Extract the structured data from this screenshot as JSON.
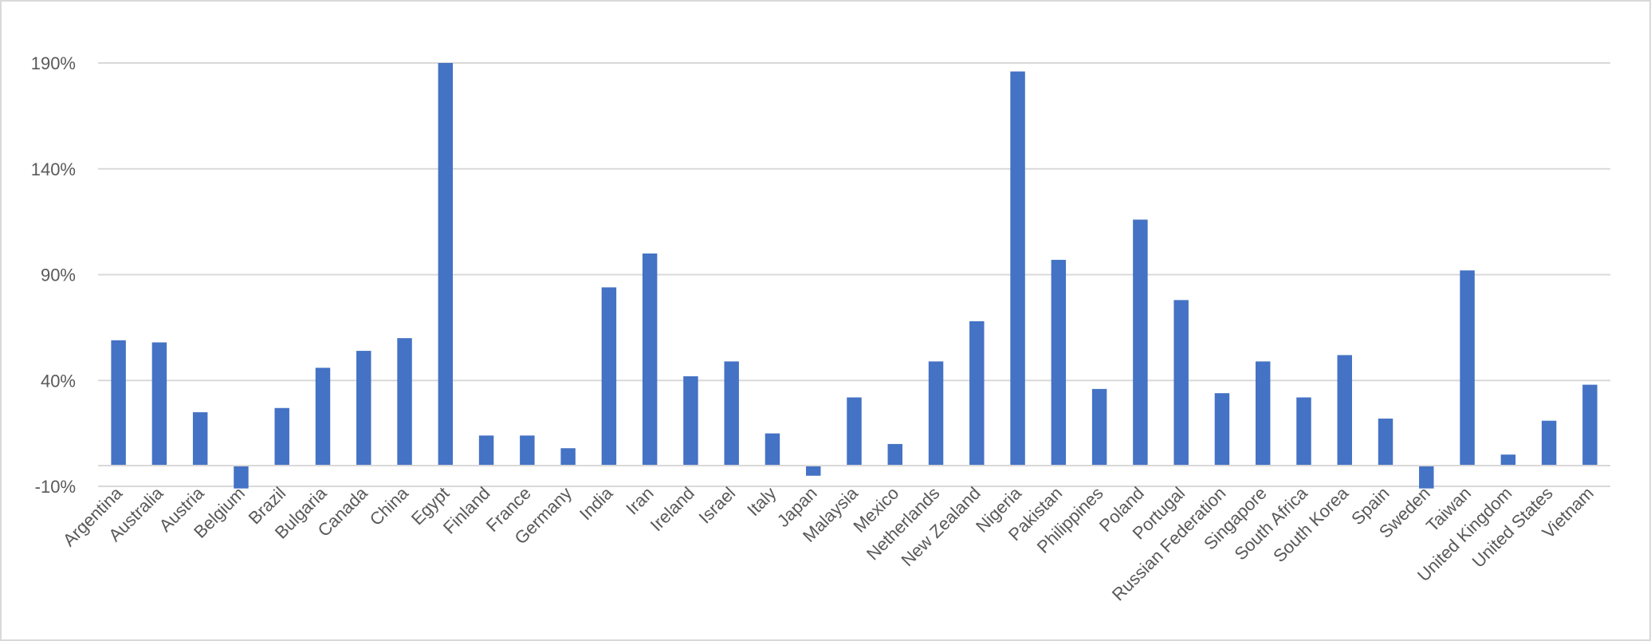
{
  "chart_data": {
    "type": "bar",
    "title": "",
    "xlabel": "",
    "ylabel": "",
    "categories": [
      "Argentina",
      "Australia",
      "Austria",
      "Belgium",
      "Brazil",
      "Bulgaria",
      "Canada",
      "China",
      "Egypt",
      "Finland",
      "France",
      "Germany",
      "India",
      "Iran",
      "Ireland",
      "Israel",
      "Italy",
      "Japan",
      "Malaysia",
      "Mexico",
      "Netherlands",
      "New Zealand",
      "Nigeria",
      "Pakistan",
      "Philippines",
      "Poland",
      "Portugal",
      "Russian Federation",
      "Singapore",
      "South Africa",
      "South Korea",
      "Spain",
      "Sweden",
      "Taiwan",
      "United Kingdom",
      "United States",
      "Vietnam"
    ],
    "series": [
      {
        "values": [
          59,
          58,
          25,
          -11,
          27,
          46,
          54,
          60,
          190,
          14,
          14,
          8,
          84,
          100,
          42,
          49,
          15,
          -5,
          32,
          10,
          49,
          68,
          186,
          97,
          36,
          116,
          78,
          34,
          49,
          32,
          52,
          22,
          -11,
          92,
          5,
          21,
          38
        ]
      }
    ],
    "ylim": [
      -10,
      190
    ],
    "yticks": [
      -10,
      40,
      90,
      140,
      190
    ],
    "ytick_labels": [
      "-10%",
      "40%",
      "90%",
      "140%",
      "190%"
    ],
    "grid": true,
    "legend": "none",
    "colors": {
      "bar": "#4472c4",
      "grid": "#d9d9d9",
      "axis": "#d9d9d9",
      "text": "#595959"
    }
  }
}
